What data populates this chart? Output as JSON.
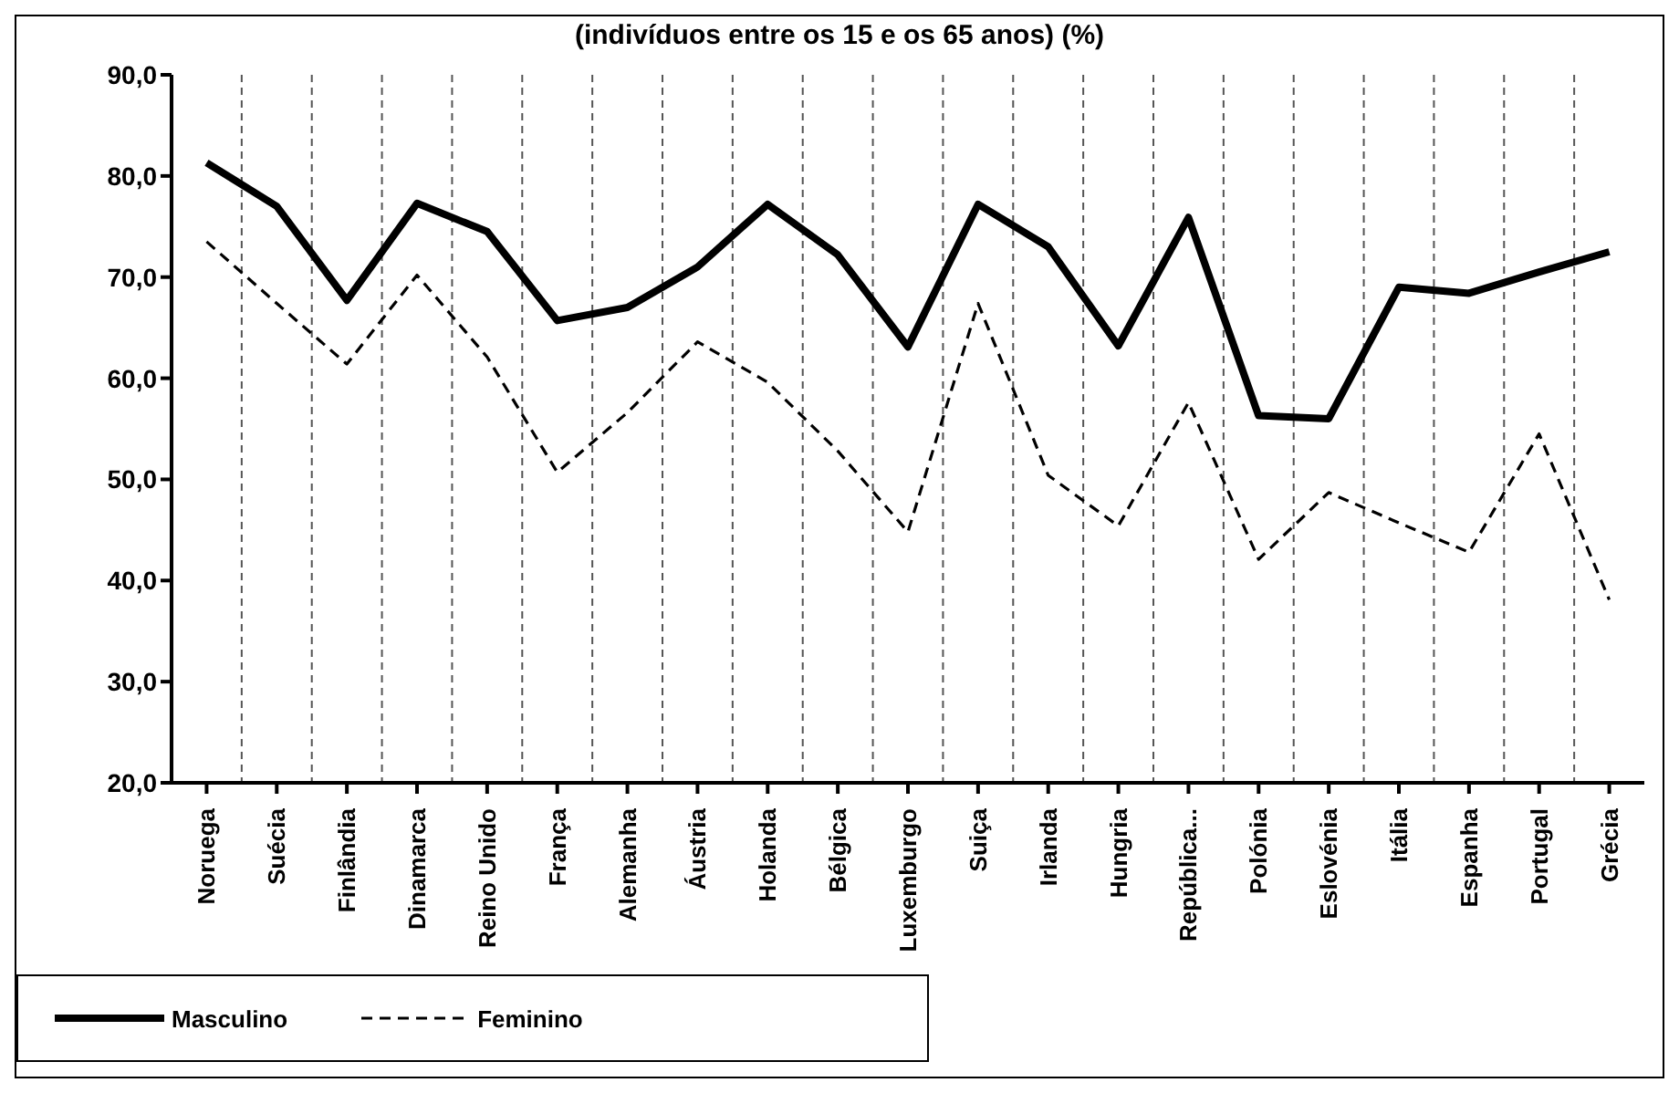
{
  "chart_data": {
    "type": "line",
    "title": "(indivíduos entre os 15 e os 65 anos) (%)",
    "categories": [
      "Noruega",
      "Suécia",
      "Finlândia",
      "Dinamarca",
      "Reino Unido",
      "França",
      "Alemanha",
      "Áustria",
      "Holanda",
      "Bélgica",
      "Luxemburgo",
      "Suiça",
      "Irlanda",
      "Hungria",
      "República...",
      "Polónia",
      "Eslovénia",
      "Itália",
      "Espanha",
      "Portugal",
      "Grécia"
    ],
    "series": [
      {
        "name": "Masculino",
        "color": "#000000",
        "line_style": "solid",
        "values": [
          81.3,
          77.0,
          67.7,
          77.3,
          74.5,
          65.7,
          67.0,
          71.0,
          77.2,
          72.2,
          63.1,
          77.2,
          73.0,
          63.2,
          75.9,
          56.3,
          56.0,
          69.0,
          68.4,
          70.5,
          72.5
        ]
      },
      {
        "name": "Feminino",
        "color": "#000000",
        "line_style": "dashed",
        "values": [
          73.5,
          67.4,
          61.4,
          70.2,
          62.1,
          50.7,
          56.6,
          63.6,
          59.6,
          52.8,
          44.8,
          67.4,
          50.4,
          45.4,
          57.6,
          42.1,
          48.7,
          45.7,
          42.8,
          54.5,
          38.1
        ]
      }
    ],
    "ylim": [
      20,
      90
    ],
    "yticks": [
      {
        "value": 20,
        "label": "20,0"
      },
      {
        "value": 30,
        "label": "30,0"
      },
      {
        "value": 40,
        "label": "40,0"
      },
      {
        "value": 50,
        "label": "50,0"
      },
      {
        "value": 60,
        "label": "60,0"
      },
      {
        "value": 70,
        "label": "70,0"
      },
      {
        "value": 80,
        "label": "80,0"
      },
      {
        "value": 90,
        "label": "90,0"
      }
    ],
    "grid": "x",
    "legend": "bottom left"
  }
}
